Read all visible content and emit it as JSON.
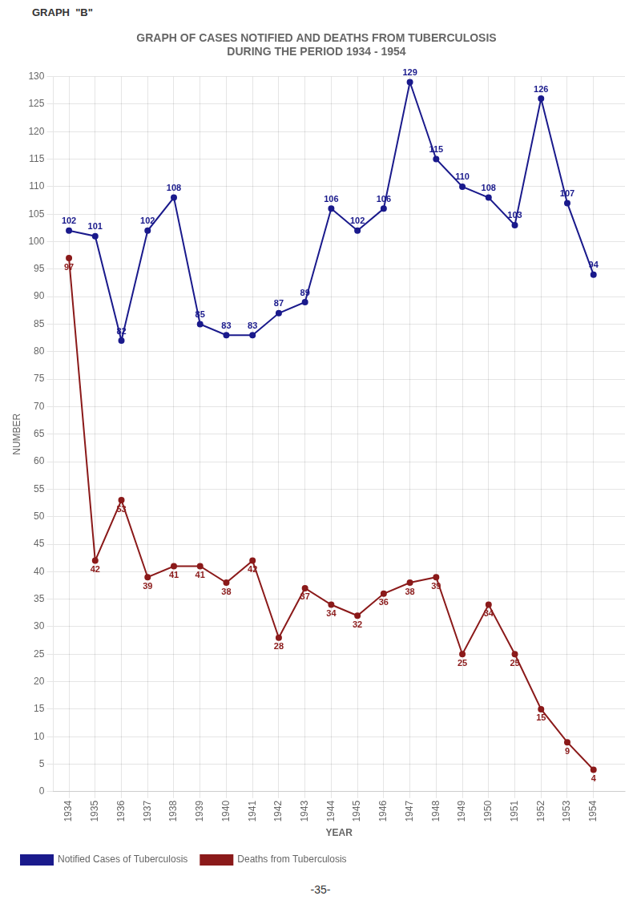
{
  "chart_data": {
    "type": "line",
    "title": [
      "GRAPH OF CASES NOTIFIED AND DEATHS FROM TUBERCULOSIS",
      "DURING THE PERIOD 1934 - 1954"
    ],
    "annotations": [
      "GRAPH  \"B\"",
      "-35-"
    ],
    "xlabel": "YEAR",
    "ylabel": "NUMBER",
    "x": [
      1934,
      1935,
      1936,
      1937,
      1938,
      1939,
      1940,
      1941,
      1942,
      1943,
      1944,
      1945,
      1946,
      1947,
      1948,
      1949,
      1950,
      1951,
      1952,
      1953,
      1954
    ],
    "series": [
      {
        "name": "Notified Cases of Tuberculosis",
        "color": "#1a1a8c",
        "marker": "circle",
        "values": [
          102,
          101,
          82,
          102,
          108,
          85,
          83,
          83,
          87,
          89,
          106,
          102,
          106,
          129,
          115,
          110,
          108,
          103,
          126,
          107,
          94
        ]
      },
      {
        "name": "Deaths from Tuberculosis",
        "color": "#8b1a1a",
        "marker": "circle",
        "values": [
          97,
          42,
          53,
          39,
          41,
          41,
          38,
          42,
          28,
          37,
          34,
          32,
          36,
          38,
          39,
          25,
          34,
          25,
          15,
          9,
          4
        ]
      }
    ],
    "xlim": [
      1933.4,
      1955.2
    ],
    "xticks": [
      1934,
      1935,
      1936,
      1937,
      1938,
      1939,
      1940,
      1941,
      1942,
      1943,
      1944,
      1945,
      1946,
      1947,
      1948,
      1949,
      1950,
      1951,
      1952,
      1953,
      1954
    ],
    "ylim": [
      0,
      130
    ],
    "yticks": [
      0,
      5,
      10,
      15,
      20,
      25,
      30,
      35,
      40,
      45,
      50,
      55,
      60,
      65,
      70,
      75,
      80,
      85,
      90,
      95,
      100,
      105,
      110,
      115,
      120,
      125,
      130
    ],
    "grid": true,
    "legend": "bottom",
    "data_labels": true
  }
}
